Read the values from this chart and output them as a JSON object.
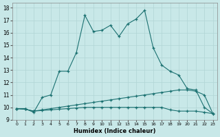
{
  "xlabel": "Humidex (Indice chaleur)",
  "ylabel": "",
  "bg_color": "#c8e8e8",
  "grid_color": "#b0d4d4",
  "line_color": "#1a7070",
  "xlim": [
    -0.5,
    23.5
  ],
  "ylim": [
    9.0,
    18.4
  ],
  "x_ticks": [
    0,
    1,
    2,
    3,
    4,
    5,
    6,
    7,
    8,
    9,
    10,
    11,
    12,
    13,
    14,
    15,
    16,
    17,
    18,
    19,
    20,
    21,
    22,
    23
  ],
  "y_ticks": [
    9,
    10,
    11,
    12,
    13,
    14,
    15,
    16,
    17,
    18
  ],
  "line1_x": [
    0,
    1,
    2,
    3,
    4,
    5,
    6,
    7,
    8,
    9,
    10,
    11,
    12,
    13,
    14,
    15,
    16,
    17,
    18,
    19,
    20,
    21,
    22,
    23
  ],
  "line1_y": [
    9.9,
    9.9,
    9.6,
    10.8,
    11.0,
    12.9,
    12.9,
    14.4,
    17.4,
    16.1,
    16.2,
    16.6,
    15.7,
    16.7,
    17.1,
    17.8,
    14.8,
    13.4,
    12.9,
    12.6,
    11.5,
    11.4,
    10.0,
    9.5
  ],
  "line2_x": [
    0,
    1,
    2,
    3,
    4,
    5,
    6,
    7,
    8,
    9,
    10,
    11,
    12,
    13,
    14,
    15,
    16,
    17,
    18,
    19,
    20,
    21,
    22,
    23
  ],
  "line2_y": [
    9.9,
    9.85,
    9.7,
    9.8,
    9.9,
    10.0,
    10.1,
    10.2,
    10.3,
    10.4,
    10.5,
    10.6,
    10.7,
    10.8,
    10.9,
    11.0,
    11.1,
    11.2,
    11.3,
    11.4,
    11.4,
    11.3,
    11.0,
    9.5
  ],
  "line3_x": [
    0,
    1,
    2,
    3,
    4,
    5,
    6,
    7,
    8,
    9,
    10,
    11,
    12,
    13,
    14,
    15,
    16,
    17,
    18,
    19,
    20,
    21,
    22,
    23
  ],
  "line3_y": [
    9.9,
    9.85,
    9.7,
    9.75,
    9.8,
    9.85,
    9.9,
    9.95,
    10.0,
    10.0,
    10.0,
    10.0,
    10.0,
    10.0,
    10.0,
    10.0,
    10.0,
    10.0,
    9.8,
    9.7,
    9.7,
    9.7,
    9.6,
    9.5
  ]
}
